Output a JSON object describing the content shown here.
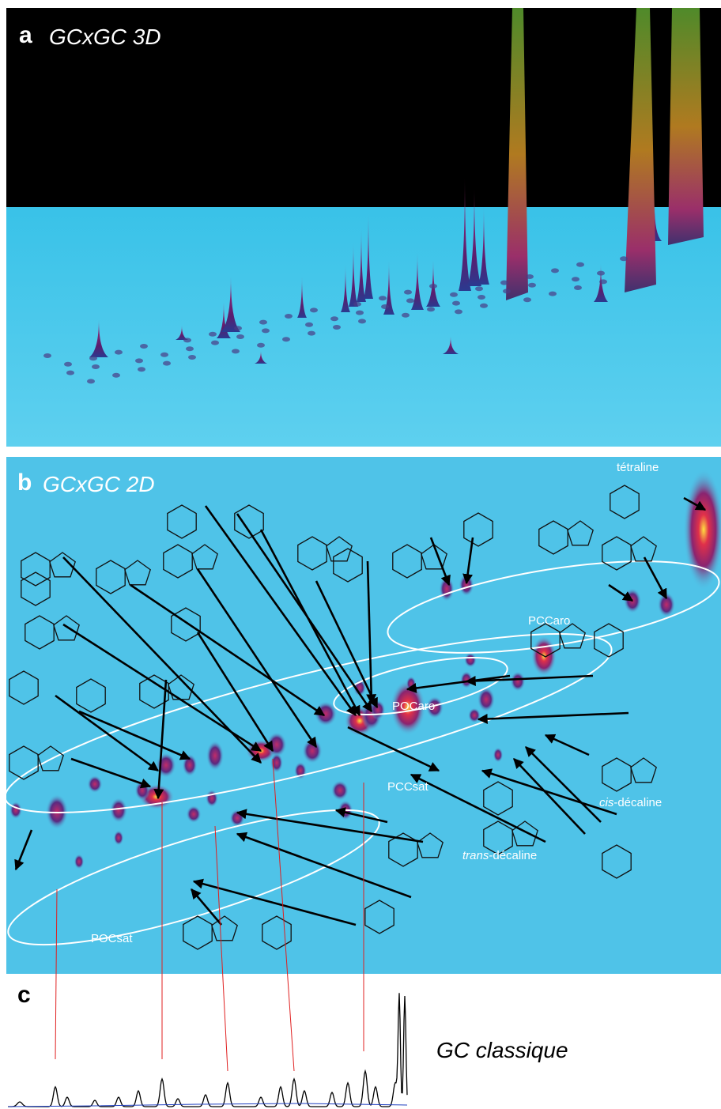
{
  "panels": [
    {
      "label": "a",
      "title": "GCxGC 3D"
    },
    {
      "label": "b",
      "title": "GCxGC 2D",
      "annotations": {
        "tetraline": "tétraline",
        "pccaro": "PCCaro",
        "pocaro": "POCaro",
        "pccsat": "PCCsat",
        "pocsat": "POCsat",
        "cis_decaline": {
          "italic": "cis",
          "rest": "-décaline"
        },
        "trans_decaline": {
          "italic": "trans",
          "rest": "-décaline"
        }
      }
    },
    {
      "label": "c",
      "title": "GC classique"
    }
  ]
}
